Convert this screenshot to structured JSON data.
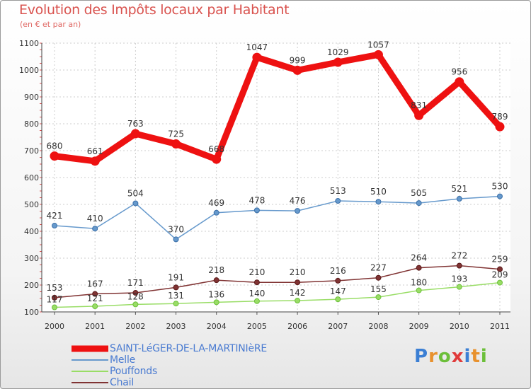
{
  "header": {
    "title": "Evolution des Impôts locaux par Habitant",
    "subtitle": "(en € et par an)"
  },
  "logo": {
    "text": "Proxiti",
    "colors": [
      "#3b7fd4",
      "#e8912d",
      "#6cbf3a",
      "#e03b3b",
      "#3b7fd4",
      "#e8912d",
      "#6cbf3a"
    ]
  },
  "chart_data": {
    "type": "line",
    "title": "Evolution des Impôts locaux par Habitant",
    "subtitle": "(en € et par an)",
    "xlabel": "",
    "ylabel": "",
    "categories": [
      "2000",
      "2001",
      "2002",
      "2003",
      "2004",
      "2005",
      "2006",
      "2007",
      "2008",
      "2009",
      "2010",
      "2011"
    ],
    "ylim": [
      100,
      1100
    ],
    "yticks": [
      100,
      200,
      300,
      400,
      500,
      600,
      700,
      800,
      900,
      1000,
      1100
    ],
    "grid": true,
    "legend_position": "bottom-left",
    "series": [
      {
        "name": "SAINT-LéGER-DE-LA-MARTINIèRE",
        "color": "#ee1111",
        "values": [
          680,
          661,
          763,
          725,
          668,
          1047,
          999,
          1029,
          1057,
          831,
          956,
          789
        ],
        "labels": [
          "680",
          "661",
          "763",
          "725",
          "668",
          "1047",
          "999",
          "1029",
          "1057",
          "831",
          "956",
          "789"
        ]
      },
      {
        "name": "Melle",
        "color": "#6699cc",
        "values": [
          421,
          410,
          504,
          370,
          469,
          478,
          476,
          513,
          510,
          505,
          521,
          530
        ],
        "labels": [
          "421",
          "410",
          "504",
          "370",
          "469",
          "478",
          "476",
          "513",
          "510",
          "505",
          "521",
          "530"
        ]
      },
      {
        "name": "Pouffonds",
        "color": "#99dd66",
        "values": [
          117,
          121,
          128,
          131,
          136,
          140,
          142,
          147,
          155,
          180,
          193,
          209
        ],
        "labels": [
          "117",
          "121",
          "128",
          "131",
          "136",
          "140",
          "142",
          "147",
          "155",
          "180",
          "193",
          "209"
        ]
      },
      {
        "name": "Chail",
        "color": "#803333",
        "values": [
          153,
          167,
          171,
          191,
          218,
          210,
          210,
          216,
          227,
          264,
          272,
          259
        ],
        "labels": [
          "153",
          "167",
          "171",
          "191",
          "218",
          "210",
          "210",
          "216",
          "227",
          "264",
          "272",
          "259"
        ]
      }
    ]
  }
}
